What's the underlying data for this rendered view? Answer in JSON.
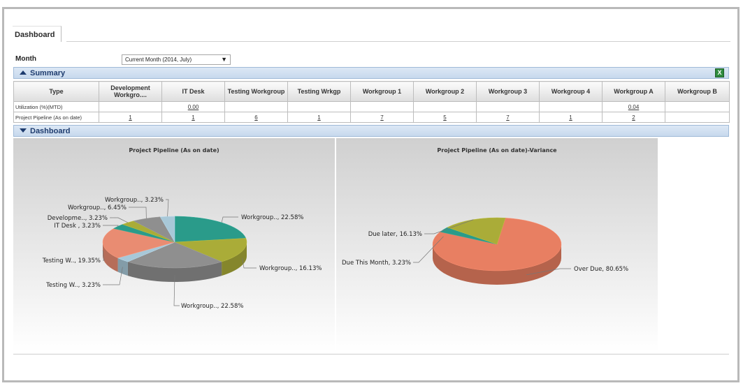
{
  "tabs": [
    {
      "label": "Dashboard"
    }
  ],
  "filter": {
    "label": "Month",
    "selected": "Current Month (2014, July)"
  },
  "summary": {
    "title": "Summary",
    "columns": [
      "Type",
      "Development Workgro....",
      "IT Desk",
      "Testing Workgroup",
      "Testing Wrkgp",
      "Workgroup 1",
      "Workgroup 2",
      "Workgroup 3",
      "Workgroup 4",
      "Workgroup A",
      "Workgroup B"
    ],
    "rows": [
      {
        "label": "Utilization (%)(MTD)",
        "values": [
          "",
          "0.00",
          "",
          "",
          "",
          "",
          "",
          "",
          "0.04",
          ""
        ]
      },
      {
        "label": "Project Pipeline (As on date)",
        "values": [
          "1",
          "1",
          "6",
          "1",
          "7",
          "5",
          "7",
          "1",
          "2",
          ""
        ]
      }
    ],
    "export_icon": "excel-icon"
  },
  "dashboard": {
    "title": "Dashboard"
  },
  "colors": {
    "teal": "#2a9b8a",
    "olive": "#aaac38",
    "gray": "#8f8f8f",
    "lightblue": "#a8c8d8",
    "salmon": "#e98c72",
    "overdue": "#e87f62"
  },
  "chart_data": [
    {
      "type": "pie",
      "title": "Project Pipeline (As on date)",
      "slices": [
        {
          "label": "Workgroup.., 22.58%",
          "value": 22.58,
          "color": "#2a9b8a"
        },
        {
          "label": "Workgroup.., 16.13%",
          "value": 16.13,
          "color": "#aaac38"
        },
        {
          "label": "Workgroup.., 22.58%",
          "value": 22.58,
          "color": "#8f8f8f"
        },
        {
          "label": "Testing W.., 3.23%",
          "value": 3.23,
          "color": "#a8c8d8"
        },
        {
          "label": "Testing W.., 19.35%",
          "value": 19.35,
          "color": "#e98c72"
        },
        {
          "label": "IT Desk , 3.23%",
          "value": 3.23,
          "color": "#2a9b8a"
        },
        {
          "label": "Developme.., 3.23%",
          "value": 3.23,
          "color": "#aaac38"
        },
        {
          "label": "Workgroup.., 6.45%",
          "value": 6.45,
          "color": "#8f8f8f"
        },
        {
          "label": "Workgroup.., 3.23%",
          "value": 3.23,
          "color": "#a8c8d8"
        }
      ]
    },
    {
      "type": "pie",
      "title": "Project Pipeline (As on date)-Variance",
      "slices": [
        {
          "label": "Over Due, 80.65%",
          "value": 80.65,
          "color": "#e87f62"
        },
        {
          "label": "Due This Month, 3.23%",
          "value": 3.23,
          "color": "#2a9b8a"
        },
        {
          "label": "Due later, 16.13%",
          "value": 16.13,
          "color": "#aaac38"
        }
      ]
    }
  ]
}
